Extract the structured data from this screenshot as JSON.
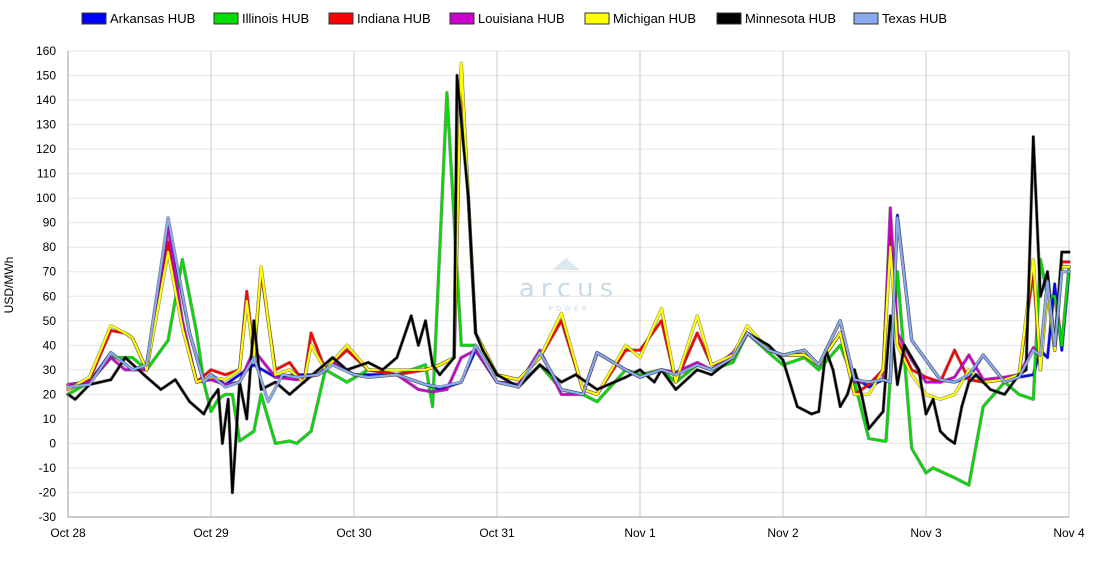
{
  "chart_data": {
    "type": "line",
    "ylabel": "USD/MWh",
    "xlabel": "",
    "ylim": [
      -30,
      160
    ],
    "yticks": [
      -30,
      -20,
      -10,
      0,
      10,
      20,
      30,
      40,
      50,
      60,
      70,
      80,
      90,
      100,
      110,
      120,
      130,
      140,
      150,
      160
    ],
    "xlim": [
      0,
      7
    ],
    "xtick_labels": [
      "Oct 28",
      "Oct 29",
      "Oct 30",
      "Oct 31",
      "Nov 1",
      "Nov 2",
      "Nov 3",
      "Nov 4"
    ],
    "grid": true,
    "legend_position": "top",
    "watermark": "arcus",
    "watermark_sub": "POWER",
    "series": [
      {
        "name": "Arkansas HUB",
        "color": "#0000ff",
        "x": [
          0,
          0.15,
          0.3,
          0.45,
          0.55,
          0.7,
          0.85,
          0.95,
          1.0,
          1.1,
          1.2,
          1.3,
          1.45,
          1.6,
          1.75,
          1.85,
          2.0,
          2.1,
          2.3,
          2.5,
          2.6,
          2.75,
          2.85,
          3.0,
          3.15,
          3.3,
          3.45,
          3.6,
          3.7,
          3.9,
          4.0,
          4.15,
          4.25,
          4.4,
          4.5,
          4.65,
          4.75,
          4.9,
          5.0,
          5.15,
          5.25,
          5.4,
          5.5,
          5.6,
          5.7,
          5.75,
          5.8,
          5.9,
          6.0,
          6.1,
          6.2,
          6.3,
          6.4,
          6.55,
          6.65,
          6.75,
          6.8,
          6.85,
          6.9,
          6.95,
          7.0
        ],
        "y": [
          24,
          25,
          37,
          30,
          32,
          90,
          45,
          25,
          28,
          24,
          28,
          32,
          27,
          28,
          28,
          33,
          28,
          28,
          28,
          24,
          22,
          25,
          38,
          25,
          24,
          37,
          22,
          20,
          37,
          30,
          27,
          30,
          28,
          32,
          30,
          35,
          45,
          38,
          36,
          38,
          32,
          45,
          27,
          23,
          26,
          25,
          93,
          42,
          34,
          26,
          25,
          27,
          36,
          25,
          27,
          28,
          38,
          35,
          65,
          38,
          70
        ]
      },
      {
        "name": "Illinois HUB",
        "color": "#00dd00",
        "x": [
          0,
          0.15,
          0.3,
          0.45,
          0.55,
          0.7,
          0.8,
          0.9,
          0.95,
          1.0,
          1.05,
          1.1,
          1.15,
          1.2,
          1.3,
          1.35,
          1.45,
          1.55,
          1.6,
          1.7,
          1.8,
          1.95,
          2.1,
          2.3,
          2.5,
          2.55,
          2.65,
          2.75,
          2.85,
          3.0,
          3.15,
          3.3,
          3.45,
          3.6,
          3.7,
          3.9,
          4.0,
          4.15,
          4.25,
          4.4,
          4.5,
          4.65,
          4.75,
          4.9,
          5.0,
          5.15,
          5.25,
          5.4,
          5.5,
          5.6,
          5.7,
          5.72,
          5.8,
          5.9,
          6.0,
          6.05,
          6.2,
          6.3,
          6.4,
          6.55,
          6.65,
          6.75,
          6.8,
          6.85,
          6.9,
          6.95,
          7.0
        ],
        "y": [
          20,
          25,
          35,
          35,
          30,
          42,
          75,
          45,
          25,
          13,
          18,
          20,
          20,
          1,
          5,
          20,
          0,
          1,
          0,
          5,
          30,
          25,
          30,
          28,
          32,
          15,
          143,
          40,
          40,
          25,
          23,
          32,
          22,
          20,
          17,
          30,
          28,
          30,
          25,
          32,
          30,
          33,
          45,
          37,
          32,
          35,
          30,
          40,
          25,
          2,
          1,
          1,
          70,
          -2,
          -12,
          -10,
          -14,
          -17,
          15,
          25,
          20,
          18,
          75,
          60,
          60,
          40,
          72
        ]
      },
      {
        "name": "Indiana HUB",
        "color": "#ff0000",
        "x": [
          0,
          0.15,
          0.3,
          0.4,
          0.45,
          0.55,
          0.7,
          0.8,
          0.9,
          1.0,
          1.1,
          1.2,
          1.25,
          1.3,
          1.35,
          1.45,
          1.55,
          1.65,
          1.7,
          1.8,
          1.95,
          2.1,
          2.3,
          2.5,
          2.6,
          2.7,
          2.75,
          2.85,
          3.0,
          3.15,
          3.3,
          3.45,
          3.6,
          3.7,
          3.9,
          4.0,
          4.15,
          4.25,
          4.4,
          4.5,
          4.65,
          4.75,
          4.9,
          5.0,
          5.15,
          5.25,
          5.4,
          5.5,
          5.6,
          5.7,
          5.75,
          5.8,
          5.9,
          6.0,
          6.1,
          6.2,
          6.3,
          6.4,
          6.55,
          6.65,
          6.75,
          6.8,
          6.85,
          6.9,
          6.95,
          7.0
        ],
        "y": [
          22,
          26,
          46,
          45,
          43,
          30,
          82,
          48,
          25,
          30,
          28,
          30,
          62,
          35,
          70,
          30,
          33,
          25,
          45,
          30,
          38,
          30,
          28,
          30,
          32,
          35,
          152,
          45,
          28,
          26,
          35,
          50,
          22,
          20,
          38,
          38,
          50,
          25,
          45,
          32,
          35,
          45,
          38,
          36,
          36,
          32,
          45,
          20,
          24,
          30,
          90,
          42,
          30,
          27,
          25,
          38,
          26,
          25,
          26,
          28,
          70,
          30,
          65,
          38,
          74,
          74
        ]
      },
      {
        "name": "Louisiana HUB",
        "color": "#cc00cc",
        "x": [
          0,
          0.15,
          0.3,
          0.4,
          0.55,
          0.7,
          0.8,
          0.9,
          1.0,
          1.1,
          1.2,
          1.3,
          1.45,
          1.6,
          1.75,
          1.85,
          2.0,
          2.1,
          2.3,
          2.45,
          2.55,
          2.65,
          2.75,
          2.85,
          3.0,
          3.15,
          3.3,
          3.45,
          3.6,
          3.7,
          3.9,
          4.0,
          4.15,
          4.25,
          4.4,
          4.5,
          4.65,
          4.75,
          4.9,
          5.0,
          5.15,
          5.25,
          5.4,
          5.5,
          5.6,
          5.7,
          5.75,
          5.8,
          5.9,
          6.0,
          6.1,
          6.2,
          6.3,
          6.4,
          6.55,
          6.65,
          6.75,
          6.8,
          6.85,
          6.9,
          6.95,
          7.0
        ],
        "y": [
          24,
          25,
          35,
          30,
          30,
          88,
          50,
          25,
          26,
          24,
          25,
          38,
          27,
          26,
          28,
          33,
          28,
          27,
          28,
          22,
          21,
          22,
          35,
          38,
          25,
          24,
          38,
          20,
          20,
          37,
          30,
          27,
          30,
          29,
          33,
          30,
          37,
          45,
          38,
          36,
          36,
          32,
          50,
          25,
          25,
          26,
          96,
          45,
          34,
          25,
          25,
          27,
          36,
          26,
          27,
          28,
          39,
          35,
          65,
          38,
          72,
          72
        ]
      },
      {
        "name": "Michigan HUB",
        "color": "#ffff00",
        "x": [
          0,
          0.15,
          0.3,
          0.4,
          0.45,
          0.55,
          0.7,
          0.8,
          0.9,
          1.0,
          1.1,
          1.2,
          1.25,
          1.3,
          1.35,
          1.45,
          1.55,
          1.65,
          1.7,
          1.8,
          1.95,
          2.1,
          2.3,
          2.5,
          2.6,
          2.7,
          2.75,
          2.85,
          3.0,
          3.15,
          3.3,
          3.45,
          3.6,
          3.7,
          3.9,
          4.0,
          4.15,
          4.25,
          4.4,
          4.5,
          4.65,
          4.75,
          4.9,
          5.0,
          5.15,
          5.25,
          5.4,
          5.5,
          5.6,
          5.7,
          5.75,
          5.8,
          5.9,
          6.0,
          6.1,
          6.2,
          6.3,
          6.4,
          6.55,
          6.65,
          6.75,
          6.8,
          6.85,
          6.9,
          6.95,
          7.0
        ],
        "y": [
          22,
          27,
          48,
          45,
          43,
          30,
          78,
          47,
          25,
          27,
          26,
          30,
          58,
          35,
          72,
          28,
          30,
          25,
          40,
          30,
          40,
          30,
          30,
          30,
          32,
          35,
          155,
          45,
          28,
          26,
          35,
          53,
          22,
          20,
          40,
          35,
          55,
          25,
          52,
          32,
          36,
          48,
          38,
          36,
          36,
          32,
          45,
          20,
          20,
          30,
          80,
          40,
          28,
          20,
          18,
          20,
          30,
          25,
          26,
          28,
          75,
          30,
          62,
          38,
          72,
          72
        ]
      },
      {
        "name": "Minnesota HUB",
        "color": "#000000",
        "x": [
          0,
          0.05,
          0.15,
          0.3,
          0.4,
          0.55,
          0.65,
          0.75,
          0.85,
          0.95,
          1.0,
          1.05,
          1.08,
          1.12,
          1.15,
          1.2,
          1.25,
          1.3,
          1.35,
          1.45,
          1.55,
          1.65,
          1.75,
          1.85,
          1.95,
          2.1,
          2.2,
          2.3,
          2.4,
          2.45,
          2.5,
          2.55,
          2.6,
          2.7,
          2.72,
          2.8,
          2.85,
          2.9,
          3.0,
          3.15,
          3.3,
          3.45,
          3.55,
          3.7,
          3.9,
          4.0,
          4.1,
          4.15,
          4.25,
          4.4,
          4.5,
          4.65,
          4.75,
          4.9,
          5.0,
          5.1,
          5.2,
          5.25,
          5.3,
          5.35,
          5.4,
          5.45,
          5.5,
          5.55,
          5.6,
          5.7,
          5.75,
          5.8,
          5.85,
          5.9,
          5.95,
          6.0,
          6.05,
          6.1,
          6.15,
          6.2,
          6.25,
          6.3,
          6.35,
          6.45,
          6.55,
          6.65,
          6.7,
          6.75,
          6.8,
          6.85,
          6.9,
          6.95,
          7.0
        ],
        "y": [
          20,
          18,
          24,
          26,
          35,
          27,
          22,
          26,
          17,
          12,
          18,
          22,
          0,
          18,
          -20,
          25,
          10,
          50,
          22,
          25,
          20,
          25,
          30,
          35,
          30,
          33,
          30,
          35,
          52,
          40,
          50,
          32,
          28,
          35,
          150,
          100,
          45,
          38,
          28,
          23,
          32,
          25,
          28,
          22,
          27,
          30,
          25,
          30,
          22,
          30,
          28,
          35,
          45,
          40,
          34,
          15,
          12,
          13,
          38,
          30,
          15,
          20,
          30,
          20,
          6,
          13,
          52,
          24,
          40,
          35,
          30,
          12,
          18,
          5,
          2,
          0,
          15,
          25,
          28,
          22,
          20,
          28,
          30,
          125,
          60,
          70,
          40,
          78,
          78
        ]
      },
      {
        "name": "Texas HUB",
        "color": "#88aaee",
        "x": [
          0,
          0.15,
          0.3,
          0.45,
          0.55,
          0.7,
          0.85,
          0.95,
          1.0,
          1.1,
          1.2,
          1.3,
          1.4,
          1.5,
          1.6,
          1.75,
          1.85,
          2.0,
          2.1,
          2.3,
          2.5,
          2.6,
          2.75,
          2.85,
          3.0,
          3.15,
          3.3,
          3.45,
          3.6,
          3.7,
          3.9,
          4.0,
          4.15,
          4.25,
          4.4,
          4.5,
          4.65,
          4.75,
          4.9,
          5.0,
          5.15,
          5.25,
          5.4,
          5.5,
          5.6,
          5.7,
          5.75,
          5.8,
          5.9,
          6.0,
          6.1,
          6.2,
          6.3,
          6.4,
          6.55,
          6.65,
          6.75,
          6.8,
          6.85,
          6.9,
          6.95,
          7.0
        ],
        "y": [
          23,
          24,
          37,
          30,
          32,
          92,
          45,
          25,
          28,
          23,
          25,
          35,
          17,
          28,
          27,
          28,
          32,
          28,
          27,
          28,
          24,
          23,
          25,
          40,
          25,
          23,
          37,
          22,
          20,
          37,
          30,
          27,
          30,
          28,
          32,
          30,
          35,
          45,
          38,
          36,
          38,
          32,
          50,
          26,
          25,
          26,
          25,
          92,
          42,
          34,
          26,
          25,
          28,
          36,
          25,
          27,
          38,
          36,
          66,
          40,
          70,
          70
        ]
      }
    ]
  }
}
